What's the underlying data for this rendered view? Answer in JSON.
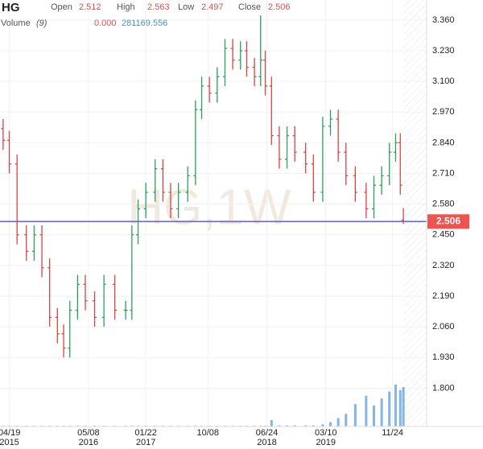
{
  "chart_data": {
    "type": "ohlc",
    "title": "HG",
    "watermark": "HG,1W",
    "open_label": "Open",
    "high_label": "High",
    "low_label": "Low",
    "close_label": "Close",
    "volume_label": "Volume",
    "volume_period": "(9)",
    "volume_readout": [
      {
        "value": 0,
        "label": "0.000"
      },
      281169.556
    ],
    "x": [
      1,
      5,
      10,
      16,
      21,
      26,
      31,
      36,
      40,
      44,
      49,
      54,
      60,
      66,
      73,
      80,
      84,
      88,
      93,
      99,
      104,
      109,
      114,
      120,
      125,
      129,
      134,
      139,
      144,
      149,
      154,
      158,
      163,
      167,
      170,
      174,
      179,
      184,
      189,
      196,
      201,
      207,
      212,
      217,
      222,
      228,
      235,
      240,
      245,
      250,
      254,
      257,
      259
    ],
    "open": [
      2.9,
      2.85,
      2.75,
      2.45,
      2.38,
      2.45,
      2.31,
      2.1,
      2.03,
      1.97,
      2.13,
      2.24,
      2.17,
      2.1,
      2.24,
      2.13,
      2.13,
      2.45,
      2.56,
      2.63,
      2.73,
      2.63,
      2.56,
      2.63,
      2.7,
      2.98,
      3.08,
      3.05,
      3.12,
      3.24,
      3.19,
      3.23,
      3.16,
      3.12,
      3.19,
      3.08,
      2.87,
      2.77,
      2.87,
      2.8,
      2.75,
      2.63,
      2.91,
      2.94,
      2.8,
      2.7,
      2.63,
      2.56,
      2.66,
      2.7,
      2.8,
      2.84,
      2.512
    ],
    "high": [
      2.94,
      2.89,
      2.79,
      2.49,
      2.49,
      2.49,
      2.35,
      2.14,
      2.07,
      2.17,
      2.28,
      2.28,
      2.21,
      2.28,
      2.28,
      2.17,
      2.49,
      2.6,
      2.67,
      2.77,
      2.77,
      2.67,
      2.67,
      2.74,
      3.02,
      3.12,
      3.12,
      3.16,
      3.28,
      3.28,
      3.27,
      3.27,
      3.2,
      3.38,
      3.23,
      3.12,
      2.91,
      2.91,
      2.91,
      2.84,
      2.79,
      2.95,
      2.98,
      2.98,
      2.84,
      2.74,
      2.67,
      2.7,
      2.74,
      2.84,
      2.88,
      2.88,
      2.563
    ],
    "low": [
      2.81,
      2.71,
      2.41,
      2.34,
      2.34,
      2.27,
      2.06,
      1.99,
      1.93,
      1.93,
      2.09,
      2.13,
      2.06,
      2.06,
      2.09,
      2.09,
      2.09,
      2.41,
      2.52,
      2.59,
      2.59,
      2.52,
      2.52,
      2.59,
      2.66,
      2.94,
      3.01,
      3.01,
      3.08,
      3.15,
      3.15,
      3.12,
      3.08,
      3.08,
      3.04,
      2.83,
      2.73,
      2.73,
      2.76,
      2.71,
      2.59,
      2.59,
      2.87,
      2.76,
      2.66,
      2.59,
      2.52,
      2.52,
      2.62,
      2.66,
      2.76,
      2.62,
      2.497
    ],
    "close": [
      2.85,
      2.75,
      2.45,
      2.38,
      2.45,
      2.31,
      2.1,
      2.03,
      1.97,
      2.13,
      2.24,
      2.17,
      2.1,
      2.24,
      2.13,
      2.13,
      2.45,
      2.56,
      2.63,
      2.73,
      2.63,
      2.56,
      2.63,
      2.7,
      2.98,
      3.08,
      3.05,
      3.12,
      3.24,
      3.19,
      3.23,
      3.16,
      3.12,
      3.19,
      3.08,
      2.87,
      2.77,
      2.87,
      2.8,
      2.75,
      2.63,
      2.91,
      2.94,
      2.8,
      2.7,
      2.63,
      2.56,
      2.66,
      2.7,
      2.8,
      2.84,
      2.66,
      2.506
    ],
    "volume": [
      5000,
      5000,
      5000,
      5000,
      5000,
      5000,
      5000,
      5000,
      5000,
      5000,
      5000,
      5000,
      5000,
      5000,
      5000,
      5000,
      5000,
      5000,
      5000,
      5000,
      5000,
      5000,
      5000,
      5000,
      5000,
      5000,
      5000,
      5000,
      5000,
      5000,
      5000,
      5000,
      5000,
      5000,
      5000,
      46000,
      8000,
      8000,
      8000,
      8000,
      8000,
      15000,
      30000,
      60000,
      90000,
      160000,
      220000,
      150000,
      200000,
      250000,
      300000,
      260000,
      281169.556
    ],
    "up_color": "#2e9e5b",
    "down_color": "#d64541",
    "volume_color": "#5b9bd5",
    "price_line_color": "#6b6bb5",
    "last_price_color": "#ef5350",
    "xlim": [
      -1,
      274
    ],
    "ylim": [
      1.6375,
      3.445
    ],
    "volume_lim": [
      0,
      1150000
    ],
    "grid": true,
    "yticks": [
      {
        "value": 3.36,
        "label": "3.360"
      },
      {
        "value": 3.23,
        "label": "3.230"
      },
      {
        "value": 3.1,
        "label": "3.100"
      },
      {
        "value": 2.97,
        "label": "2.970"
      },
      {
        "value": 2.84,
        "label": "2.840"
      },
      {
        "value": 2.71,
        "label": "2.710"
      },
      {
        "value": 2.58,
        "label": "2.580"
      },
      {
        "value": 2.45,
        "label": "2.450"
      },
      {
        "value": 2.32,
        "label": "2.320"
      },
      {
        "value": 2.19,
        "label": "2.190"
      },
      {
        "value": 2.06,
        "label": "2.060"
      },
      {
        "value": 1.93,
        "label": "1.930"
      },
      {
        "value": 1.8,
        "label": "1.800"
      }
    ],
    "xticks": [
      {
        "value": 5,
        "label": "04/19",
        "sublabel": "2015"
      },
      {
        "value": 56,
        "label": "05/08",
        "sublabel": "2016"
      },
      {
        "value": 93,
        "label": "01/22",
        "sublabel": "2017"
      },
      {
        "value": 133,
        "label": "10/08"
      },
      {
        "value": 171,
        "label": "06/24",
        "sublabel": "2018"
      },
      {
        "value": 209,
        "label": "03/10",
        "sublabel": "2019"
      },
      {
        "value": 252,
        "label": "11/24"
      }
    ]
  }
}
